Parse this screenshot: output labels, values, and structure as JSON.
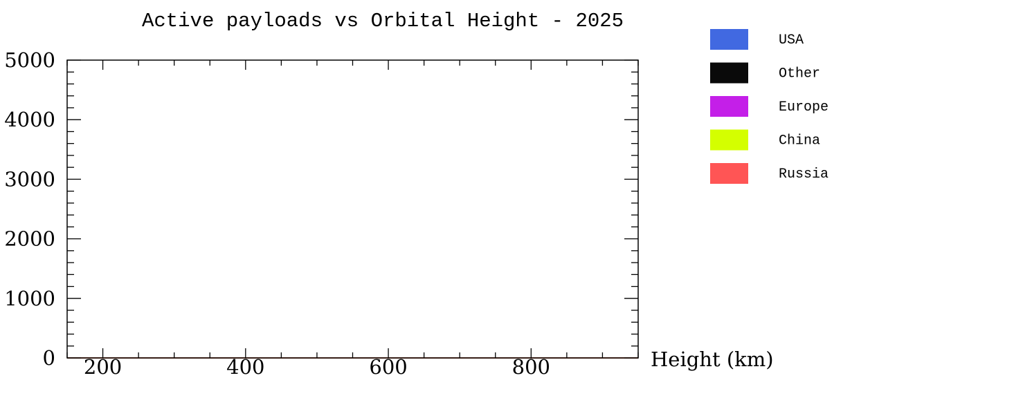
{
  "chart_data": {
    "type": "area",
    "stacked": true,
    "title": "Active payloads vs Orbital Height - 2025",
    "xlabel": "Height (km)",
    "ylabel": "",
    "xlim": [
      150,
      950
    ],
    "ylim": [
      0,
      5000
    ],
    "xticks": [
      200,
      400,
      600,
      800
    ],
    "xtick_labels": [
      "200",
      "400",
      "600",
      "800"
    ],
    "yticks": [
      0,
      1000,
      2000,
      3000,
      4000,
      5000
    ],
    "ytick_labels": [
      "0",
      "1000",
      "2000",
      "3000",
      "4000",
      "5000"
    ],
    "grid": false,
    "legend_position": "right",
    "x": [
      150,
      200,
      250,
      300,
      350,
      400,
      450,
      500,
      550,
      600,
      650,
      700,
      750,
      800,
      850,
      900,
      950
    ],
    "series": [
      {
        "name": "USA",
        "color": "#4169e1",
        "values": [
          0,
          0,
          0,
          0,
          0,
          0,
          0,
          0,
          0,
          0,
          0,
          0,
          0,
          0,
          0,
          0,
          0
        ]
      },
      {
        "name": "Other",
        "color": "#0a0a0a",
        "values": [
          0,
          0,
          0,
          0,
          0,
          0,
          0,
          0,
          0,
          0,
          0,
          0,
          0,
          0,
          0,
          0,
          0
        ]
      },
      {
        "name": "Europe",
        "color": "#c41fe8",
        "values": [
          0,
          0,
          0,
          0,
          0,
          0,
          0,
          0,
          0,
          0,
          0,
          0,
          0,
          0,
          0,
          0,
          0
        ]
      },
      {
        "name": "China",
        "color": "#d4ff00",
        "values": [
          0,
          0,
          0,
          0,
          0,
          0,
          0,
          0,
          0,
          0,
          0,
          0,
          0,
          0,
          0,
          0,
          0
        ]
      },
      {
        "name": "Russia",
        "color": "#ff5555",
        "values": [
          0,
          0,
          0,
          0,
          0,
          0,
          0,
          0,
          0,
          0,
          0,
          0,
          0,
          0,
          0,
          0,
          0
        ]
      }
    ]
  }
}
